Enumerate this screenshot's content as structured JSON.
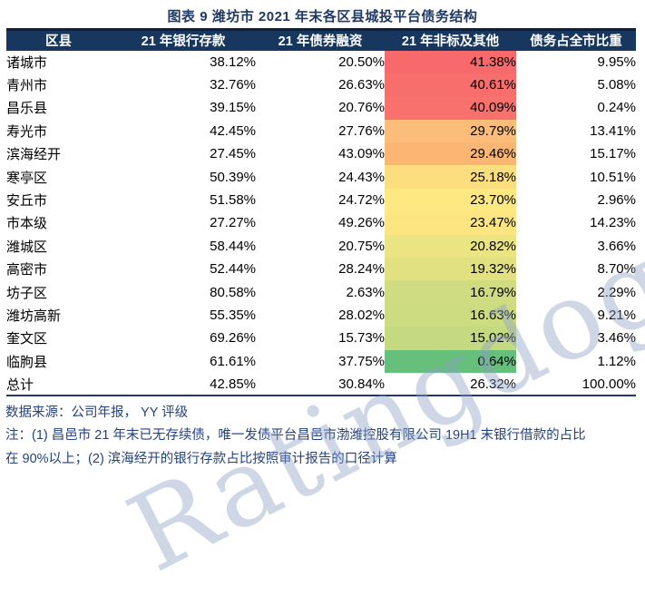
{
  "title": "图表 9 潍坊市 2021 年末各区县城投平台债务结构",
  "watermark": "Ratingdog",
  "colors": {
    "title_text": "#1F3864",
    "header_bg": "#17375E",
    "header_text": "#FFFFFF",
    "body_text": "#000000",
    "footer_text": "#24427E",
    "table_top_border": "#121F38",
    "table_bottom_border": "#1F3864",
    "heat_scale_high": "#F8696B",
    "heat_scale_mid": "#FFEB84",
    "heat_scale_low": "#63BE7B"
  },
  "table": {
    "columns": [
      "区县",
      "21 年银行存款",
      "21 年债券融资",
      "21 年非标及其他",
      "债务占全市比重"
    ],
    "rows": [
      {
        "district": "诸城市",
        "bank": "38.12%",
        "bond": "20.50%",
        "nonstd": "41.38%",
        "share": "9.95%",
        "heat": "#F8696B"
      },
      {
        "district": "青州市",
        "bank": "32.76%",
        "bond": "26.63%",
        "nonstd": "40.61%",
        "share": "5.08%",
        "heat": "#F86E6C"
      },
      {
        "district": "昌乐县",
        "bank": "39.15%",
        "bond": "20.76%",
        "nonstd": "40.09%",
        "share": "0.24%",
        "heat": "#F8716D"
      },
      {
        "district": "寿光市",
        "bank": "42.45%",
        "bond": "27.76%",
        "nonstd": "29.79%",
        "share": "13.41%",
        "heat": "#FCBC7A"
      },
      {
        "district": "滨海经开",
        "bank": "27.45%",
        "bond": "43.09%",
        "nonstd": "29.46%",
        "share": "15.17%",
        "heat": "#FBB674"
      },
      {
        "district": "寒亭区",
        "bank": "50.39%",
        "bond": "24.43%",
        "nonstd": "25.18%",
        "share": "10.51%",
        "heat": "#FDDE7E"
      },
      {
        "district": "安丘市",
        "bank": "51.58%",
        "bond": "24.72%",
        "nonstd": "23.70%",
        "share": "2.96%",
        "heat": "#FEE881"
      },
      {
        "district": "市本级",
        "bank": "27.27%",
        "bond": "49.26%",
        "nonstd": "23.47%",
        "share": "14.23%",
        "heat": "#FDE681"
      },
      {
        "district": "潍城区",
        "bank": "58.44%",
        "bond": "20.75%",
        "nonstd": "20.82%",
        "share": "3.66%",
        "heat": "#EAE483"
      },
      {
        "district": "高密市",
        "bank": "52.44%",
        "bond": "28.24%",
        "nonstd": "19.32%",
        "share": "8.70%",
        "heat": "#E2E182"
      },
      {
        "district": "坊子区",
        "bank": "80.58%",
        "bond": "2.63%",
        "nonstd": "16.79%",
        "share": "2.29%",
        "heat": "#D0DC81"
      },
      {
        "district": "潍坊高新",
        "bank": "55.35%",
        "bond": "28.02%",
        "nonstd": "16.63%",
        "share": "9.21%",
        "heat": "#CEDC81"
      },
      {
        "district": "奎文区",
        "bank": "69.26%",
        "bond": "15.73%",
        "nonstd": "15.02%",
        "share": "3.46%",
        "heat": "#C4D980"
      },
      {
        "district": "临朐县",
        "bank": "61.61%",
        "bond": "37.75%",
        "nonstd": "0.64%",
        "share": "1.12%",
        "heat": "#66C07C"
      },
      {
        "district": "总计",
        "bank": "42.85%",
        "bond": "30.84%",
        "nonstd": "26.32%",
        "share": "100.00%",
        "heat": ""
      }
    ]
  },
  "footer": {
    "source": "数据来源：公司年报， YY 评级",
    "note_lines": [
      "注：(1) 昌邑市 21 年末已无存续债，唯一发债平台昌邑市渤潍控股有限公司 19H1 末银行借款的占比",
      "在 90%以上；(2) 滨海经开的银行存款占比按照审计报告的口径计算"
    ]
  },
  "chart_data": {
    "type": "table",
    "title": "图表 9 潍坊市 2021 年末各区县城投平台债务结构",
    "columns": [
      "区县",
      "21年银行存款(%)",
      "21年债券融资(%)",
      "21年非标及其他(%)",
      "债务占全市比重(%)"
    ],
    "heatmap_column": "21年非标及其他(%)",
    "heatmap_scale": {
      "max_color": "#F8696B",
      "mid_color": "#FFEB84",
      "min_color": "#63BE7B"
    },
    "rows": [
      [
        "诸城市",
        38.12,
        20.5,
        41.38,
        9.95
      ],
      [
        "青州市",
        32.76,
        26.63,
        40.61,
        5.08
      ],
      [
        "昌乐县",
        39.15,
        20.76,
        40.09,
        0.24
      ],
      [
        "寿光市",
        42.45,
        27.76,
        29.79,
        13.41
      ],
      [
        "滨海经开",
        27.45,
        43.09,
        29.46,
        15.17
      ],
      [
        "寒亭区",
        50.39,
        24.43,
        25.18,
        10.51
      ],
      [
        "安丘市",
        51.58,
        24.72,
        23.7,
        2.96
      ],
      [
        "市本级",
        27.27,
        49.26,
        23.47,
        14.23
      ],
      [
        "潍城区",
        58.44,
        20.75,
        20.82,
        3.66
      ],
      [
        "高密市",
        52.44,
        28.24,
        19.32,
        8.7
      ],
      [
        "坊子区",
        80.58,
        2.63,
        16.79,
        2.29
      ],
      [
        "潍坊高新",
        55.35,
        28.02,
        16.63,
        9.21
      ],
      [
        "奎文区",
        69.26,
        15.73,
        15.02,
        3.46
      ],
      [
        "临朐县",
        61.61,
        37.75,
        0.64,
        1.12
      ],
      [
        "总计",
        42.85,
        30.84,
        26.32,
        100.0
      ]
    ]
  }
}
